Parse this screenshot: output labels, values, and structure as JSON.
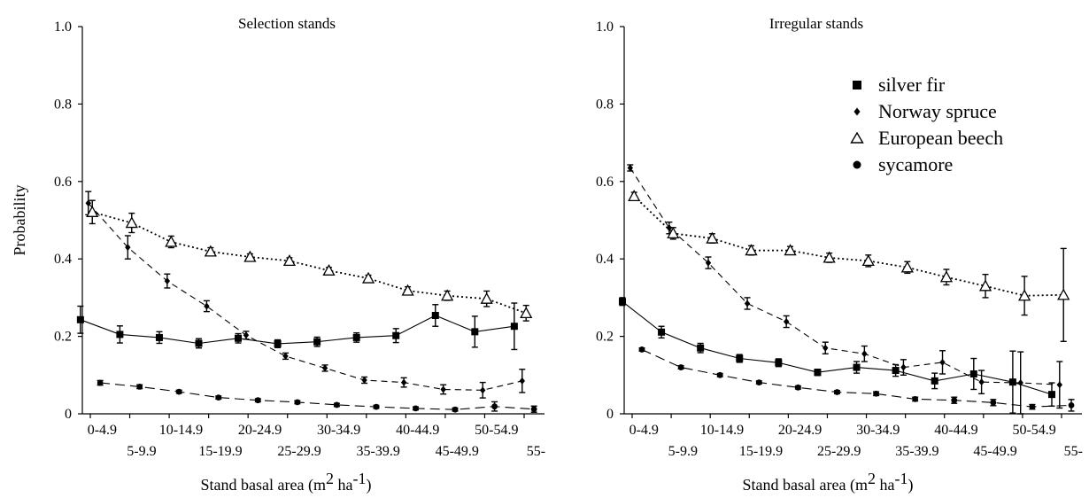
{
  "chart_data": [
    {
      "type": "line",
      "title": "Selection stands",
      "xlabel": "Stand basal area (m2 ha-1)",
      "ylabel": "Probability",
      "ylim": [
        0,
        1
      ],
      "yticks": [
        "0",
        "0.2",
        "0.4",
        "0.6",
        "0.8",
        "1.0"
      ],
      "categories": [
        "0-4.9",
        "5-9.9",
        "10-14.9",
        "15-19.9",
        "20-24.9",
        "25-29.9",
        "30-34.9",
        "35-39.9",
        "40-44.9",
        "45-49.9",
        "50-54.9",
        "55-"
      ],
      "series": [
        {
          "name": "silver fir",
          "style": "solid",
          "marker": "square",
          "offset": -0.25,
          "values": [
            0.243,
            0.205,
            0.197,
            0.182,
            0.195,
            0.181,
            0.186,
            0.197,
            0.202,
            0.254,
            0.212,
            0.226
          ],
          "err": [
            0.035,
            0.022,
            0.015,
            0.012,
            0.012,
            0.01,
            0.012,
            0.012,
            0.018,
            0.028,
            0.04,
            0.06
          ]
        },
        {
          "name": "Norway spruce",
          "style": "dash",
          "marker": "diamond",
          "offset": -0.05,
          "values": [
            0.544,
            0.43,
            0.343,
            0.278,
            0.203,
            0.149,
            0.118,
            0.087,
            0.081,
            0.063,
            0.061,
            0.085
          ],
          "err": [
            0.03,
            0.03,
            0.018,
            0.014,
            0.01,
            0.008,
            0.008,
            0.008,
            0.012,
            0.012,
            0.02,
            0.03
          ]
        },
        {
          "name": "European beech",
          "style": "dot",
          "marker": "triangle",
          "offset": 0.05,
          "values": [
            0.521,
            0.493,
            0.444,
            0.419,
            0.405,
            0.395,
            0.37,
            0.35,
            0.318,
            0.305,
            0.297,
            0.26
          ],
          "err": [
            0.03,
            0.025,
            0.015,
            0.01,
            0.008,
            0.008,
            0.008,
            0.008,
            0.01,
            0.012,
            0.02,
            0.02
          ]
        },
        {
          "name": "sycamore",
          "style": "longdash",
          "marker": "circle",
          "offset": 0.25,
          "values": [
            0.08,
            0.07,
            0.057,
            0.042,
            0.035,
            0.03,
            0.023,
            0.018,
            0.014,
            0.011,
            0.019,
            0.012
          ],
          "err": [
            0.006,
            0.005,
            0.004,
            0.004,
            0.004,
            0.004,
            0.004,
            0.004,
            0.004,
            0.004,
            0.012,
            0.008
          ]
        }
      ]
    },
    {
      "type": "line",
      "title": "Irregular stands",
      "xlabel": "Stand basal area (m2 ha-1)",
      "ylabel": "",
      "ylim": [
        0,
        1
      ],
      "yticks": [
        "0",
        "0.2",
        "0.4",
        "0.6",
        "0.8",
        "1.0"
      ],
      "categories": [
        "0-4.9",
        "5-9.9",
        "10-14.9",
        "15-19.9",
        "20-24.9",
        "25-29.9",
        "30-34.9",
        "35-39.9",
        "40-44.9",
        "45-49.9",
        "50-54.9",
        "55-"
      ],
      "series": [
        {
          "name": "silver fir",
          "style": "solid",
          "marker": "square",
          "offset": -0.25,
          "values": [
            0.29,
            0.211,
            0.17,
            0.143,
            0.132,
            0.107,
            0.12,
            0.112,
            0.085,
            0.103,
            0.082,
            0.05
          ],
          "err": [
            0.01,
            0.015,
            0.012,
            0.01,
            0.01,
            0.008,
            0.015,
            0.015,
            0.02,
            0.04,
            0.08,
            0.03
          ]
        },
        {
          "name": "Norway spruce",
          "style": "dash",
          "marker": "diamond",
          "offset": -0.05,
          "values": [
            0.635,
            0.48,
            0.39,
            0.285,
            0.238,
            0.17,
            0.155,
            0.12,
            0.133,
            0.082,
            0.08,
            0.075
          ],
          "err": [
            0.008,
            0.015,
            0.015,
            0.015,
            0.015,
            0.015,
            0.02,
            0.02,
            0.03,
            0.03,
            0.08,
            0.06
          ]
        },
        {
          "name": "European beech",
          "style": "dot",
          "marker": "triangle",
          "offset": 0.05,
          "values": [
            0.562,
            0.466,
            0.453,
            0.422,
            0.422,
            0.403,
            0.395,
            0.378,
            0.353,
            0.33,
            0.305,
            0.307
          ],
          "err": [
            0.01,
            0.015,
            0.012,
            0.012,
            0.01,
            0.012,
            0.015,
            0.015,
            0.02,
            0.03,
            0.05,
            0.12
          ]
        },
        {
          "name": "sycamore",
          "style": "longdash",
          "marker": "circle",
          "offset": 0.25,
          "values": [
            0.166,
            0.12,
            0.1,
            0.081,
            0.068,
            0.056,
            0.052,
            0.038,
            0.035,
            0.029,
            0.018,
            0.022
          ],
          "err": [
            0.004,
            0.004,
            0.004,
            0.004,
            0.004,
            0.004,
            0.005,
            0.005,
            0.008,
            0.008,
            0.006,
            0.015
          ]
        }
      ]
    }
  ],
  "legend": {
    "placement": "top-right of right panel",
    "items": [
      {
        "label": "silver fir",
        "marker": "square"
      },
      {
        "label": "Norway spruce",
        "marker": "diamond"
      },
      {
        "label": "European beech",
        "marker": "triangle"
      },
      {
        "label": "sycamore",
        "marker": "circle"
      }
    ]
  },
  "xaxis_title": {
    "prefix": "Stand basal area (m",
    "sup1": "2",
    "mid": " ha",
    "sup2": "-1",
    "suffix": ")"
  }
}
